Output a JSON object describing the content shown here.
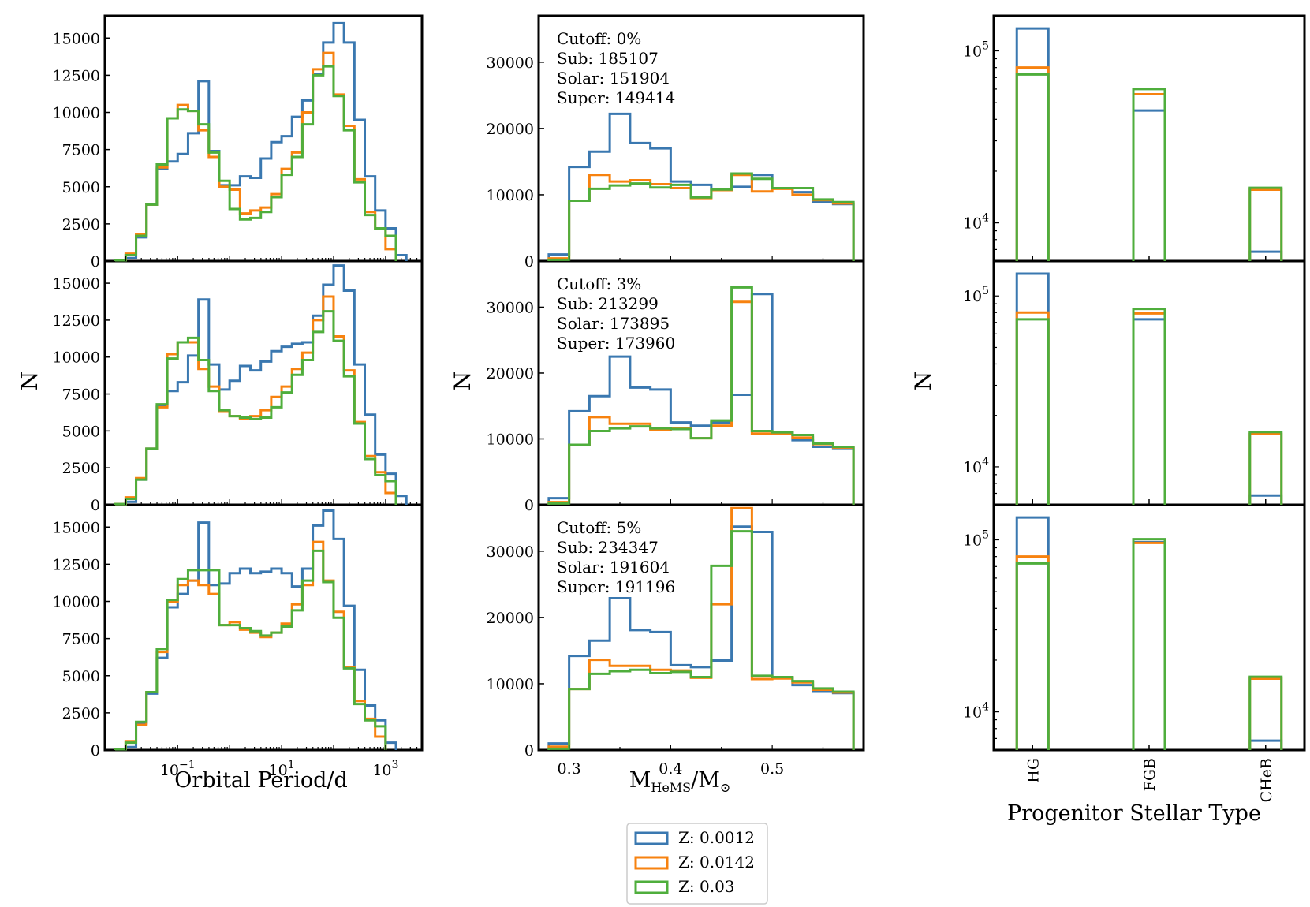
{
  "colors": {
    "z1": "#3a78b0",
    "z2": "#f7820f",
    "z3": "#4fae3c",
    "axis": "#000000"
  },
  "series_names": [
    "Z: 0.0012",
    "Z: 0.0142",
    "Z: 0.03"
  ],
  "legend": {
    "items": [
      "Z: 0.0012",
      "Z: 0.0142",
      "Z: 0.03"
    ]
  },
  "labels": {
    "left_xlabel": "Orbital Period/d",
    "mid_xlabel_main": "M",
    "mid_xlabel_sub": "HeMS",
    "mid_xlabel_mid": "/M",
    "mid_xlabel_sun": "⊙",
    "right_xlabel": "Progenitor Stellar Type",
    "ylabel": "N"
  },
  "chart_data": [
    {
      "type": "histogram",
      "panel": "orbital-period",
      "xlabel": "Orbital Period/d",
      "ylabel": "N",
      "xscale": "log",
      "xlim_log10": [
        -2.4,
        3.7
      ],
      "ylim": [
        0,
        16500
      ],
      "yticks": [
        "0",
        "2500",
        "5000",
        "7500",
        "10000",
        "12500",
        "15000"
      ],
      "xticks": [
        {
          "base": "10",
          "exp": "−1",
          "log": -1
        },
        {
          "base": "10",
          "exp": "1",
          "log": 1
        },
        {
          "base": "10",
          "exp": "3",
          "log": 3
        }
      ],
      "bin_edges_log10": [
        -2.2,
        -2.0,
        -1.8,
        -1.6,
        -1.4,
        -1.2,
        -1.0,
        -0.8,
        -0.6,
        -0.4,
        -0.2,
        0.0,
        0.2,
        0.4,
        0.6,
        0.8,
        1.0,
        1.2,
        1.4,
        1.6,
        1.8,
        2.0,
        2.2,
        2.4,
        2.6,
        2.8,
        3.0,
        3.2,
        3.4,
        3.6
      ],
      "rows": [
        {
          "series": [
            {
              "name": "Z: 0.0012",
              "values": [
                50,
                200,
                1600,
                3800,
                6200,
                6700,
                7200,
                8600,
                12100,
                7400,
                5100,
                5100,
                5700,
                5600,
                6900,
                8000,
                8400,
                9700,
                10800,
                12600,
                14700,
                16000,
                14700,
                9500,
                5700,
                3400,
                2200,
                400
              ]
            },
            {
              "name": "Z: 0.0142",
              "values": [
                50,
                500,
                1800,
                3800,
                6300,
                9600,
                10500,
                10100,
                8800,
                7000,
                5000,
                4800,
                3200,
                3400,
                3600,
                4500,
                6200,
                7300,
                10000,
                12900,
                14000,
                11200,
                9100,
                5500,
                3300,
                2200,
                800
              ]
            },
            {
              "name": "Z: 0.03",
              "values": [
                50,
                400,
                1700,
                3800,
                6500,
                9600,
                10200,
                10100,
                9200,
                7300,
                5400,
                3500,
                2800,
                2900,
                3300,
                4300,
                5800,
                7000,
                9200,
                12500,
                13100,
                11100,
                8800,
                5300,
                3100,
                2200,
                1700
              ]
            }
          ]
        },
        {
          "series": [
            {
              "name": "Z: 0.0012",
              "values": [
                50,
                200,
                1700,
                3800,
                6700,
                7700,
                8300,
                10100,
                13900,
                9500,
                7800,
                8400,
                9400,
                9100,
                9700,
                10400,
                10700,
                10900,
                11000,
                12800,
                14900,
                16200,
                14500,
                9500,
                6100,
                3400,
                2100,
                600
              ]
            },
            {
              "name": "Z: 0.0142",
              "values": [
                50,
                500,
                1800,
                3800,
                6600,
                10200,
                11000,
                11000,
                9200,
                8000,
                6300,
                6000,
                5800,
                6000,
                6400,
                7300,
                8000,
                9200,
                10300,
                12500,
                14100,
                11400,
                9100,
                5600,
                3300,
                2200,
                800
              ]
            },
            {
              "name": "Z: 0.03",
              "values": [
                50,
                400,
                1700,
                3800,
                6800,
                9900,
                11000,
                11300,
                9800,
                7700,
                6400,
                6000,
                5900,
                5800,
                5900,
                6600,
                7600,
                8800,
                9800,
                11700,
                13100,
                11100,
                8700,
                5500,
                3100,
                2000,
                1600
              ]
            }
          ]
        },
        {
          "series": [
            {
              "name": "Z: 0.0012",
              "values": [
                50,
                200,
                1800,
                3800,
                6200,
                9600,
                10500,
                11400,
                15300,
                11100,
                11200,
                11900,
                12200,
                11900,
                12000,
                12200,
                11900,
                11000,
                12200,
                15100,
                16100,
                14200,
                9700,
                5400,
                3000,
                2000,
                500
              ]
            },
            {
              "name": "Z: 0.0142",
              "values": [
                50,
                600,
                1700,
                3900,
                6600,
                10000,
                11100,
                11400,
                11100,
                10500,
                8400,
                8600,
                8100,
                7900,
                7600,
                7900,
                8500,
                9800,
                11100,
                14000,
                11400,
                9300,
                5600,
                3300,
                2100,
                900
              ]
            },
            {
              "name": "Z: 0.03",
              "values": [
                50,
                500,
                1900,
                3900,
                6800,
                10100,
                11500,
                12100,
                12100,
                12100,
                8400,
                8400,
                8200,
                8000,
                7700,
                7900,
                8300,
                9400,
                11400,
                13400,
                11300,
                8900,
                5500,
                3100,
                2000,
                1600
              ]
            }
          ]
        }
      ]
    },
    {
      "type": "histogram",
      "panel": "hems-mass",
      "xlabel": "M_HeMS/M_⊙",
      "ylabel": "N",
      "xlim": [
        0.27,
        0.59
      ],
      "ylim": [
        0,
        37000
      ],
      "xticks": [
        "0.3",
        "0.4",
        "0.5"
      ],
      "yticks": [
        "0",
        "10000",
        "20000",
        "30000"
      ],
      "bin_edges": [
        0.28,
        0.3,
        0.32,
        0.34,
        0.36,
        0.38,
        0.4,
        0.42,
        0.44,
        0.46,
        0.48,
        0.5,
        0.52,
        0.54,
        0.56,
        0.58
      ],
      "rows": [
        {
          "annotation": [
            "Cutoff: 0%",
            "Sub: 185107",
            "Solar: 151904",
            "Super: 149414"
          ],
          "series": [
            {
              "name": "Z: 0.0012",
              "values": [
                1000,
                14200,
                16500,
                22200,
                17800,
                17000,
                12000,
                11500,
                10800,
                11200,
                13000,
                11000,
                10400,
                8900,
                8600
              ]
            },
            {
              "name": "Z: 0.0142",
              "values": [
                400,
                9100,
                13000,
                12000,
                12200,
                11600,
                11000,
                9500,
                10700,
                13000,
                10500,
                10900,
                10000,
                9200,
                8700
              ]
            },
            {
              "name": "Z: 0.03",
              "values": [
                200,
                9100,
                10900,
                11400,
                11700,
                11100,
                11500,
                9600,
                10800,
                13200,
                12400,
                11000,
                11000,
                9300,
                8900
              ]
            }
          ]
        },
        {
          "annotation": [
            "Cutoff: 3%",
            "Sub: 213299",
            "Solar: 173895",
            "Super: 173960"
          ],
          "series": [
            {
              "name": "Z: 0.0012",
              "values": [
                1000,
                14200,
                16500,
                22500,
                17800,
                17500,
                12500,
                12000,
                12500,
                16700,
                32000,
                11000,
                9800,
                8800,
                8600
              ]
            },
            {
              "name": "Z: 0.0142",
              "values": [
                400,
                9100,
                13300,
                12300,
                12300,
                11400,
                11600,
                10100,
                12000,
                30800,
                10800,
                10800,
                10200,
                9200,
                8700
              ]
            },
            {
              "name": "Z: 0.03",
              "values": [
                200,
                9100,
                11200,
                11600,
                11900,
                11600,
                11500,
                10100,
                12800,
                33000,
                11200,
                11000,
                10600,
                9300,
                8800
              ]
            }
          ]
        },
        {
          "annotation": [
            "Cutoff: 5%",
            "Sub: 234347",
            "Solar: 191604",
            "Super: 191196"
          ],
          "series": [
            {
              "name": "Z: 0.0012",
              "values": [
                1000,
                14200,
                16500,
                22900,
                18100,
                17800,
                12800,
                12500,
                13500,
                33700,
                32900,
                10900,
                9800,
                8800,
                8600
              ]
            },
            {
              "name": "Z: 0.0142",
              "values": [
                500,
                9200,
                13600,
                12700,
                12700,
                12100,
                12000,
                10900,
                22000,
                36500,
                10700,
                10800,
                10200,
                9100,
                8700
              ]
            },
            {
              "name": "Z: 0.03",
              "values": [
                200,
                9200,
                11500,
                11900,
                12100,
                11600,
                11800,
                11000,
                27800,
                33000,
                11200,
                11000,
                10400,
                9300,
                8800
              ]
            }
          ]
        }
      ]
    },
    {
      "type": "bar",
      "panel": "progenitor-type",
      "xlabel": "Progenitor Stellar Type",
      "ylabel": "N",
      "yscale": "log",
      "ylim": [
        6000,
        160000
      ],
      "yticks": [
        {
          "base": "10",
          "exp": "4",
          "value": 10000
        },
        {
          "base": "10",
          "exp": "5",
          "value": 100000
        }
      ],
      "categories": [
        "HG",
        "FGB",
        "CHeB"
      ],
      "rows": [
        {
          "series": [
            {
              "name": "Z: 0.0012",
              "values": [
                135000,
                45000,
                6800
              ]
            },
            {
              "name": "Z: 0.0142",
              "values": [
                80000,
                56000,
                15600
              ]
            },
            {
              "name": "Z: 0.03",
              "values": [
                73000,
                60000,
                16000
              ]
            }
          ]
        },
        {
          "series": [
            {
              "name": "Z: 0.0012",
              "values": [
                135000,
                73000,
                6800
              ]
            },
            {
              "name": "Z: 0.0142",
              "values": [
                80000,
                79000,
                15600
              ]
            },
            {
              "name": "Z: 0.03",
              "values": [
                73000,
                84000,
                16000
              ]
            }
          ]
        },
        {
          "series": [
            {
              "name": "Z: 0.0012",
              "values": [
                135000,
                97000,
                6800
              ]
            },
            {
              "name": "Z: 0.0142",
              "values": [
                80000,
                96000,
                15600
              ]
            },
            {
              "name": "Z: 0.03",
              "values": [
                73000,
                101000,
                16000
              ]
            }
          ]
        }
      ]
    }
  ]
}
